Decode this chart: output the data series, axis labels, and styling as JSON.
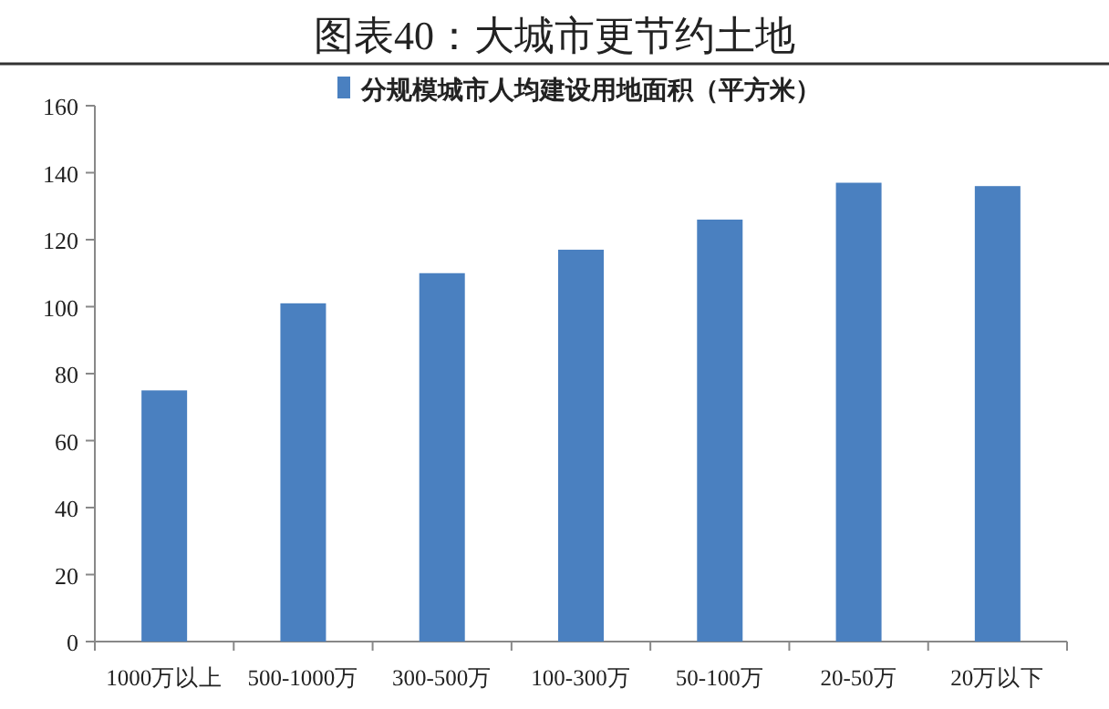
{
  "chart_data": {
    "type": "bar",
    "title": "图表40：大城市更节约土地",
    "categories": [
      "1000万以上",
      "500-1000万",
      "300-500万",
      "100-300万",
      "50-100万",
      "20-50万",
      "20万以下"
    ],
    "series": [
      {
        "name": "分规模城市人均建设用地面积（平方米）",
        "color": "#4a80c0",
        "values": [
          75,
          101,
          110,
          117,
          126,
          137,
          136
        ]
      }
    ],
    "ylim": [
      0,
      160
    ],
    "yticks": [
      0,
      20,
      40,
      60,
      80,
      100,
      120,
      140,
      160
    ],
    "grid": false,
    "legend": "top"
  }
}
